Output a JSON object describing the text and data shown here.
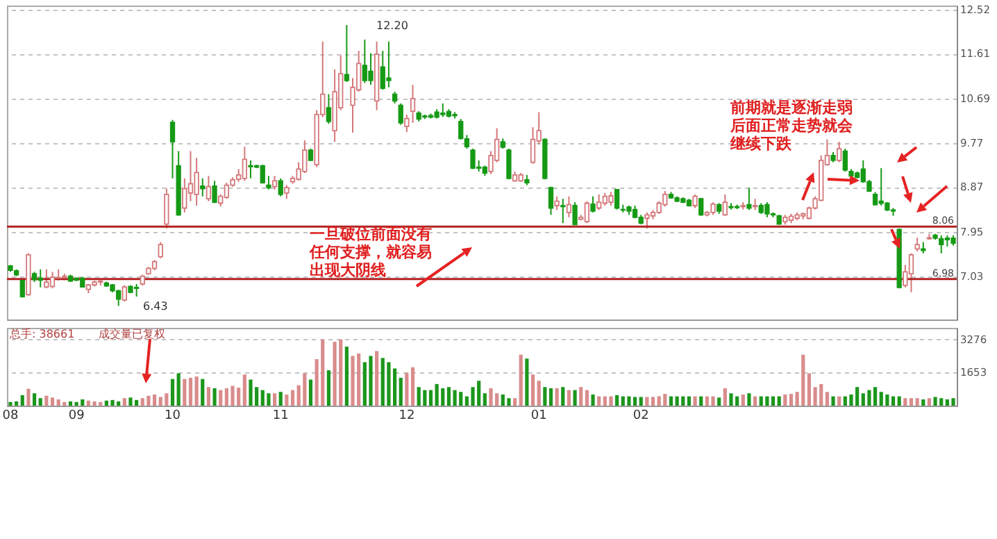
{
  "chart_data": [
    {
      "type": "candlestick",
      "categories": [
        "08",
        null,
        null,
        null,
        null,
        null,
        null,
        null,
        null,
        null,
        null,
        "09",
        null,
        null,
        null,
        null,
        null,
        null,
        null,
        null,
        null,
        null,
        null,
        null,
        null,
        null,
        null,
        "10",
        null,
        null,
        null,
        null,
        null,
        null,
        null,
        null,
        null,
        null,
        null,
        null,
        null,
        null,
        null,
        null,
        null,
        "11",
        null,
        null,
        null,
        null,
        null,
        null,
        null,
        null,
        null,
        null,
        null,
        null,
        null,
        null,
        null,
        null,
        null,
        null,
        null,
        null,
        "12",
        null,
        null,
        null,
        null,
        null,
        null,
        null,
        null,
        null,
        null,
        null,
        null,
        null,
        null,
        null,
        null,
        null,
        null,
        null,
        null,
        null,
        "01",
        null,
        null,
        null,
        null,
        null,
        null,
        null,
        null,
        null,
        null,
        null,
        null,
        null,
        null,
        null,
        null,
        "02",
        null,
        null,
        null,
        null,
        null,
        null,
        null,
        null,
        null,
        null,
        null,
        null,
        null,
        null,
        null,
        null,
        null,
        null,
        null,
        null,
        null,
        null,
        null,
        null,
        null,
        null,
        null,
        null,
        null,
        null,
        null,
        null,
        null,
        null,
        null,
        null,
        null,
        null,
        null,
        null,
        null,
        null,
        null,
        null,
        null,
        null,
        null,
        null,
        null,
        null,
        null,
        null
      ],
      "ohlc": [
        [
          7.25,
          7.27,
          7.13,
          7.16
        ],
        [
          7.15,
          7.18,
          7.04,
          7.07
        ],
        [
          6.95,
          6.97,
          6.6,
          6.62
        ],
        [
          6.66,
          7.51,
          6.64,
          7.48
        ],
        [
          7.09,
          7.13,
          6.92,
          6.97
        ],
        [
          7.0,
          7.18,
          6.81,
          6.96
        ],
        [
          6.82,
          7.18,
          6.79,
          6.92
        ],
        [
          6.83,
          7.13,
          6.79,
          7.02
        ],
        [
          7.0,
          7.18,
          6.95,
          7.01
        ],
        [
          7.01,
          7.09,
          6.96,
          7.04
        ],
        [
          7.04,
          7.07,
          6.92,
          6.94
        ],
        [
          7.0,
          7.01,
          6.94,
          6.96
        ],
        [
          7.0,
          7.02,
          6.81,
          6.82
        ],
        [
          6.77,
          6.88,
          6.69,
          6.86
        ],
        [
          6.86,
          6.95,
          6.83,
          6.92
        ],
        [
          6.92,
          6.96,
          6.85,
          6.94
        ],
        [
          6.9,
          6.93,
          6.82,
          6.84
        ],
        [
          6.86,
          6.88,
          6.71,
          6.74
        ],
        [
          6.74,
          6.76,
          6.43,
          6.57
        ],
        [
          6.55,
          6.85,
          6.52,
          6.82
        ],
        [
          6.83,
          6.85,
          6.69,
          6.71
        ],
        [
          6.81,
          6.88,
          6.62,
          6.79
        ],
        [
          6.88,
          7.07,
          6.85,
          7.04
        ],
        [
          7.09,
          7.23,
          7.07,
          7.2
        ],
        [
          7.2,
          7.37,
          7.16,
          7.34
        ],
        [
          7.44,
          7.74,
          7.41,
          7.69
        ],
        [
          8.11,
          8.84,
          8.02,
          8.72
        ],
        [
          10.2,
          10.25,
          9.05,
          9.8
        ],
        [
          9.31,
          9.61,
          8.28,
          8.3
        ],
        [
          8.44,
          9.05,
          8.35,
          8.84
        ],
        [
          8.75,
          9.61,
          8.58,
          8.94
        ],
        [
          8.72,
          9.47,
          8.49,
          9.17
        ],
        [
          8.89,
          9.05,
          8.68,
          8.84
        ],
        [
          8.63,
          9.1,
          8.58,
          8.88
        ],
        [
          8.89,
          9.0,
          8.54,
          8.56
        ],
        [
          8.54,
          8.72,
          8.47,
          8.68
        ],
        [
          8.66,
          8.96,
          8.63,
          8.91
        ],
        [
          8.91,
          9.07,
          8.88,
          9.02
        ],
        [
          9.03,
          9.24,
          8.98,
          9.12
        ],
        [
          9.05,
          9.7,
          9.0,
          9.44
        ],
        [
          9.31,
          9.42,
          9.05,
          9.29
        ],
        [
          9.31,
          9.33,
          9.26,
          9.28
        ],
        [
          9.31,
          9.33,
          8.94,
          8.96
        ],
        [
          8.91,
          9.1,
          8.82,
          8.86
        ],
        [
          8.88,
          9.1,
          8.82,
          9.0
        ],
        [
          9.0,
          9.05,
          8.68,
          8.72
        ],
        [
          8.75,
          8.91,
          8.63,
          8.86
        ],
        [
          8.98,
          9.1,
          8.94,
          9.05
        ],
        [
          9.03,
          9.38,
          9.0,
          9.24
        ],
        [
          9.19,
          9.83,
          9.16,
          9.63
        ],
        [
          9.63,
          9.66,
          9.41,
          9.42
        ],
        [
          9.33,
          10.45,
          9.28,
          10.36
        ],
        [
          10.36,
          11.86,
          10.31,
          10.78
        ],
        [
          10.5,
          10.78,
          10.17,
          10.22
        ],
        [
          10.03,
          11.29,
          9.8,
          10.83
        ],
        [
          10.5,
          11.58,
          10.45,
          11.2
        ],
        [
          11.18,
          12.2,
          11.03,
          11.06
        ],
        [
          10.55,
          11.11,
          9.99,
          10.92
        ],
        [
          10.87,
          11.67,
          10.83,
          11.41
        ],
        [
          11.37,
          11.9,
          11.01,
          11.06
        ],
        [
          11.25,
          11.62,
          10.97,
          11.06
        ],
        [
          10.64,
          11.86,
          10.45,
          11.6
        ],
        [
          11.34,
          11.67,
          10.87,
          10.9
        ],
        [
          11.11,
          11.86,
          10.92,
          11.06
        ],
        [
          10.78,
          10.83,
          10.59,
          10.64
        ],
        [
          10.55,
          10.59,
          10.15,
          10.19
        ],
        [
          10.12,
          10.36,
          10.0,
          10.28
        ],
        [
          10.43,
          10.97,
          10.19,
          10.69
        ],
        [
          10.39,
          10.43,
          10.22,
          10.27
        ],
        [
          10.33,
          10.36,
          10.27,
          10.31
        ],
        [
          10.34,
          10.38,
          10.28,
          10.31
        ],
        [
          10.41,
          10.47,
          10.28,
          10.31
        ],
        [
          10.39,
          10.59,
          10.31,
          10.36
        ],
        [
          10.42,
          10.47,
          10.3,
          10.33
        ],
        [
          10.36,
          10.41,
          10.28,
          10.34
        ],
        [
          10.22,
          10.27,
          9.85,
          9.87
        ],
        [
          9.86,
          9.94,
          9.66,
          9.7
        ],
        [
          9.63,
          9.66,
          9.24,
          9.26
        ],
        [
          9.28,
          9.42,
          9.19,
          9.26
        ],
        [
          9.28,
          9.31,
          9.1,
          9.16
        ],
        [
          9.19,
          9.61,
          9.14,
          9.52
        ],
        [
          9.42,
          10.08,
          9.38,
          9.85
        ],
        [
          9.8,
          9.87,
          9.66,
          9.69
        ],
        [
          9.63,
          9.66,
          9.03,
          9.05
        ],
        [
          9.0,
          9.19,
          8.98,
          9.12
        ],
        [
          9.0,
          9.16,
          8.98,
          9.12
        ],
        [
          9.02,
          9.12,
          8.91,
          8.96
        ],
        [
          9.38,
          10.1,
          9.35,
          9.85
        ],
        [
          9.82,
          10.41,
          9.75,
          10.03
        ],
        [
          9.85,
          9.87,
          9.03,
          9.05
        ],
        [
          8.86,
          8.88,
          8.3,
          8.44
        ],
        [
          8.49,
          8.68,
          8.4,
          8.58
        ],
        [
          8.49,
          8.63,
          8.13,
          8.47
        ],
        [
          8.35,
          8.68,
          8.25,
          8.51
        ],
        [
          8.49,
          8.56,
          8.09,
          8.1
        ],
        [
          8.21,
          8.3,
          8.19,
          8.25
        ],
        [
          8.16,
          8.58,
          8.13,
          8.54
        ],
        [
          8.52,
          8.68,
          8.35,
          8.38
        ],
        [
          8.44,
          8.72,
          8.4,
          8.56
        ],
        [
          8.54,
          8.75,
          8.49,
          8.68
        ],
        [
          8.56,
          8.77,
          8.49,
          8.69
        ],
        [
          8.82,
          8.83,
          8.41,
          8.44
        ],
        [
          8.41,
          8.51,
          8.35,
          8.4
        ],
        [
          8.46,
          8.49,
          8.3,
          8.38
        ],
        [
          8.41,
          8.49,
          8.23,
          8.25
        ],
        [
          8.25,
          8.3,
          8.11,
          8.13
        ],
        [
          8.23,
          8.35,
          8.02,
          8.3
        ],
        [
          8.28,
          8.4,
          8.21,
          8.35
        ],
        [
          8.35,
          8.58,
          8.32,
          8.54
        ],
        [
          8.51,
          8.79,
          8.47,
          8.72
        ],
        [
          8.72,
          8.77,
          8.63,
          8.65
        ],
        [
          8.65,
          8.68,
          8.56,
          8.58
        ],
        [
          8.63,
          8.66,
          8.54,
          8.56
        ],
        [
          8.6,
          8.63,
          8.47,
          8.49
        ],
        [
          8.49,
          8.72,
          8.44,
          8.68
        ],
        [
          8.63,
          8.65,
          8.28,
          8.3
        ],
        [
          8.3,
          8.38,
          8.27,
          8.35
        ],
        [
          8.35,
          8.56,
          8.3,
          8.52
        ],
        [
          8.51,
          8.54,
          8.32,
          8.38
        ],
        [
          8.3,
          8.72,
          8.28,
          8.56
        ],
        [
          8.47,
          8.54,
          8.41,
          8.45
        ],
        [
          8.47,
          8.51,
          8.42,
          8.45
        ],
        [
          8.47,
          8.56,
          8.41,
          8.49
        ],
        [
          8.51,
          8.86,
          8.4,
          8.44
        ],
        [
          8.47,
          8.63,
          8.4,
          8.49
        ],
        [
          8.49,
          8.54,
          8.32,
          8.35
        ],
        [
          8.51,
          8.56,
          8.25,
          8.32
        ],
        [
          8.32,
          8.35,
          8.25,
          8.3
        ],
        [
          8.28,
          8.3,
          8.1,
          8.11
        ],
        [
          8.16,
          8.3,
          8.1,
          8.25
        ],
        [
          8.19,
          8.32,
          8.13,
          8.27
        ],
        [
          8.23,
          8.35,
          8.19,
          8.3
        ],
        [
          8.28,
          8.35,
          8.21,
          8.32
        ],
        [
          8.23,
          8.47,
          8.21,
          8.44
        ],
        [
          8.44,
          8.68,
          8.41,
          8.63
        ],
        [
          8.6,
          9.52,
          8.58,
          9.42
        ],
        [
          9.33,
          9.85,
          9.31,
          9.52
        ],
        [
          9.52,
          9.59,
          9.38,
          9.42
        ],
        [
          9.42,
          9.8,
          9.38,
          9.66
        ],
        [
          9.61,
          9.66,
          9.19,
          9.22
        ],
        [
          9.19,
          9.24,
          9.07,
          9.1
        ],
        [
          9.16,
          9.19,
          9.05,
          9.07
        ],
        [
          9.24,
          9.42,
          8.96,
          8.98
        ],
        [
          8.98,
          9.02,
          8.77,
          8.79
        ],
        [
          8.72,
          8.77,
          8.49,
          8.51
        ],
        [
          8.58,
          9.26,
          8.49,
          8.54
        ],
        [
          8.54,
          8.56,
          8.38,
          8.4
        ],
        [
          8.4,
          8.44,
          8.28,
          8.38
        ],
        [
          8.0,
          8.02,
          6.79,
          6.81
        ],
        [
          6.85,
          7.27,
          6.81,
          7.13
        ],
        [
          7.09,
          7.51,
          6.71,
          7.48
        ],
        [
          7.6,
          7.83,
          7.55,
          7.69
        ],
        [
          7.6,
          7.74,
          7.51,
          7.57
        ],
        [
          7.81,
          7.91,
          7.79,
          7.83
        ],
        [
          7.88,
          7.91,
          7.79,
          7.82
        ],
        [
          7.81,
          7.88,
          7.51,
          7.69
        ],
        [
          7.82,
          7.88,
          7.65,
          7.79
        ],
        [
          7.82,
          7.88,
          7.67,
          7.72
        ]
      ],
      "ylim": [
        6.15,
        12.6
      ],
      "yticks": [
        7.03,
        7.95,
        8.87,
        9.77,
        10.69,
        11.61,
        12.52
      ],
      "grid": "y",
      "tick_labels": "y",
      "ref_lines": [
        {
          "axis": "y",
          "value": 8.06,
          "label": "8.06",
          "color": "#b22222"
        },
        {
          "axis": "y",
          "value": 6.98,
          "label": "6.98",
          "color": "#b22222"
        }
      ],
      "annotations": [
        "12.20",
        "6.43",
        "一旦破位前面没有任何支撑，就容易出现大阴线",
        "前期就是逐渐走弱后面正常走势就会继续下跌"
      ]
    },
    {
      "type": "bar",
      "categories": [
        "08",
        null,
        null,
        null,
        null,
        null,
        null,
        null,
        null,
        null,
        null,
        "09",
        null,
        null,
        null,
        null,
        null,
        null,
        null,
        null,
        null,
        null,
        null,
        null,
        null,
        null,
        null,
        "10",
        null,
        null,
        null,
        null,
        null,
        null,
        null,
        null,
        null,
        null,
        null,
        null,
        null,
        null,
        null,
        null,
        null,
        "11",
        null,
        null,
        null,
        null,
        null,
        null,
        null,
        null,
        null,
        null,
        null,
        null,
        null,
        null,
        null,
        null,
        null,
        null,
        null,
        null,
        "12",
        null,
        null,
        null,
        null,
        null,
        null,
        null,
        null,
        null,
        null,
        null,
        null,
        null,
        null,
        null,
        null,
        null,
        null,
        null,
        null,
        null,
        "01",
        null,
        null,
        null,
        null,
        null,
        null,
        null,
        null,
        null,
        null,
        null,
        null,
        null,
        null,
        null,
        null,
        "02",
        null,
        null,
        null,
        null,
        null,
        null,
        null,
        null,
        null,
        null,
        null,
        null,
        null,
        null,
        null,
        null,
        null,
        null,
        null,
        null,
        null,
        null,
        null,
        null,
        null,
        null,
        null,
        null,
        null,
        null,
        null,
        null,
        null,
        null,
        null,
        null,
        null,
        null,
        null,
        null,
        null,
        null,
        null,
        null,
        null,
        null,
        null,
        null,
        null,
        null,
        null,
        null
      ],
      "values": [
        180,
        210,
        520,
        830,
        610,
        370,
        490,
        400,
        310,
        180,
        210,
        180,
        310,
        250,
        210,
        180,
        250,
        280,
        210,
        370,
        400,
        280,
        370,
        490,
        550,
        430,
        610,
        1320,
        1600,
        1320,
        1380,
        1440,
        1320,
        920,
        860,
        770,
        860,
        980,
        890,
        1540,
        1290,
        920,
        770,
        610,
        610,
        680,
        550,
        770,
        1010,
        1600,
        1290,
        2300,
        3280,
        1750,
        3160,
        3280,
        2920,
        2460,
        2580,
        2150,
        2460,
        2700,
        2360,
        2150,
        1840,
        1380,
        1630,
        1900,
        920,
        770,
        770,
        1070,
        860,
        920,
        770,
        680,
        460,
        920,
        1230,
        610,
        860,
        610,
        550,
        370,
        370,
        2520,
        2330,
        1540,
        1230,
        920,
        860,
        860,
        920,
        770,
        770,
        920,
        770,
        550,
        460,
        460,
        460,
        520,
        460,
        460,
        430,
        430,
        430,
        430,
        460,
        580,
        460,
        460,
        460,
        460,
        460,
        460,
        460,
        460,
        400,
        860,
        610,
        460,
        550,
        610,
        460,
        460,
        460,
        460,
        460,
        550,
        580,
        680,
        2520,
        1600,
        920,
        1070,
        680,
        460,
        460,
        460,
        550,
        920,
        610,
        770,
        920,
        680,
        550,
        460,
        460,
        370,
        370,
        370,
        310,
        370,
        430,
        370,
        310,
        370
      ],
      "colors": [
        "#1c961c",
        "#1c961c",
        "#1c961c",
        "#d98c8c",
        "#1c961c",
        "#1c961c",
        "#d98c8c",
        "#d98c8c",
        "#d98c8c",
        "#d98c8c",
        "#1c961c",
        "#1c961c",
        "#1c961c",
        "#d98c8c",
        "#d98c8c",
        "#d98c8c",
        "#1c961c",
        "#1c961c",
        "#1c961c",
        "#d98c8c",
        "#1c961c",
        "#1c961c",
        "#d98c8c",
        "#d98c8c",
        "#d98c8c",
        "#d98c8c",
        "#d98c8c",
        "#1c961c",
        "#1c961c",
        "#d98c8c",
        "#d98c8c",
        "#d98c8c",
        "#1c961c",
        "#d98c8c",
        "#1c961c",
        "#d98c8c",
        "#d98c8c",
        "#d98c8c",
        "#d98c8c",
        "#d98c8c",
        "#1c961c",
        "#1c961c",
        "#1c961c",
        "#1c961c",
        "#d98c8c",
        "#1c961c",
        "#d98c8c",
        "#d98c8c",
        "#d98c8c",
        "#d98c8c",
        "#1c961c",
        "#d98c8c",
        "#d98c8c",
        "#1c961c",
        "#d98c8c",
        "#d98c8c",
        "#1c961c",
        "#d98c8c",
        "#d98c8c",
        "#1c961c",
        "#1c961c",
        "#d98c8c",
        "#1c961c",
        "#1c961c",
        "#1c961c",
        "#1c961c",
        "#d98c8c",
        "#d98c8c",
        "#1c961c",
        "#1c961c",
        "#1c961c",
        "#1c961c",
        "#1c961c",
        "#1c961c",
        "#1c961c",
        "#1c961c",
        "#1c961c",
        "#1c961c",
        "#1c961c",
        "#1c961c",
        "#d98c8c",
        "#d98c8c",
        "#1c961c",
        "#1c961c",
        "#d98c8c",
        "#d98c8c",
        "#1c961c",
        "#d98c8c",
        "#d98c8c",
        "#1c961c",
        "#1c961c",
        "#d98c8c",
        "#1c961c",
        "#d98c8c",
        "#1c961c",
        "#d98c8c",
        "#d98c8c",
        "#1c961c",
        "#d98c8c",
        "#d98c8c",
        "#d98c8c",
        "#1c961c",
        "#1c961c",
        "#1c961c",
        "#1c961c",
        "#1c961c",
        "#d98c8c",
        "#d98c8c",
        "#d98c8c",
        "#d98c8c",
        "#1c961c",
        "#1c961c",
        "#1c961c",
        "#1c961c",
        "#d98c8c",
        "#1c961c",
        "#d98c8c",
        "#d98c8c",
        "#1c961c",
        "#d98c8c",
        "#1c961c",
        "#1c961c",
        "#d98c8c",
        "#1c961c",
        "#d98c8c",
        "#1c961c",
        "#1c961c",
        "#1c961c",
        "#1c961c",
        "#d98c8c",
        "#d98c8c",
        "#d98c8c",
        "#d98c8c",
        "#d98c8c",
        "#d98c8c",
        "#d98c8c",
        "#d98c8c",
        "#1c961c",
        "#d98c8c",
        "#1c961c",
        "#1c961c",
        "#1c961c",
        "#1c961c",
        "#1c961c",
        "#1c961c",
        "#1c961c",
        "#1c961c",
        "#1c961c",
        "#1c961c",
        "#d98c8c",
        "#d98c8c",
        "#d98c8c",
        "#1c961c",
        "#d98c8c",
        "#1c961c",
        "#1c961c",
        "#1c961c",
        "#1c961c"
      ],
      "ylim": [
        0,
        3850
      ],
      "yticks": [
        1653,
        3276
      ],
      "grid": "y",
      "annotations": [
        "总手: 38661",
        "成交量已复权"
      ]
    }
  ]
}
